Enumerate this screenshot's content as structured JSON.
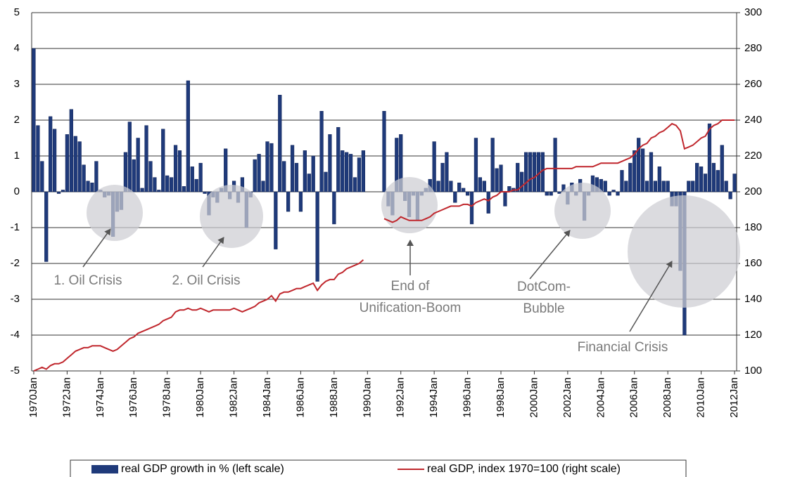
{
  "chart_data": {
    "type": "bar",
    "categories": [
      "1970Jan",
      null,
      null,
      null,
      null,
      null,
      null,
      null,
      "1972Jan",
      null,
      null,
      null,
      null,
      null,
      null,
      null,
      "1974Jan",
      null,
      null,
      null,
      null,
      null,
      null,
      null,
      "1976Jan",
      null,
      null,
      null,
      null,
      null,
      null,
      null,
      "1978Jan",
      null,
      null,
      null,
      null,
      null,
      null,
      null,
      "1980Jan",
      null,
      null,
      null,
      null,
      null,
      null,
      null,
      "1982Jan",
      null,
      null,
      null,
      null,
      null,
      null,
      null,
      "1984Jan",
      null,
      null,
      null,
      null,
      null,
      null,
      null,
      "1986Jan",
      null,
      null,
      null,
      null,
      null,
      null,
      null,
      "1988Jan",
      null,
      null,
      null,
      null,
      null,
      null,
      null,
      "1990Jan",
      null,
      null,
      null,
      null,
      null,
      null,
      null,
      "1992Jan",
      null,
      null,
      null,
      null,
      null,
      null,
      null,
      "1994Jan",
      null,
      null,
      null,
      null,
      null,
      null,
      null,
      "1996Jan",
      null,
      null,
      null,
      null,
      null,
      null,
      null,
      "1998Jan",
      null,
      null,
      null,
      null,
      null,
      null,
      null,
      "2000Jan",
      null,
      null,
      null,
      null,
      null,
      null,
      null,
      "2002Jan",
      null,
      null,
      null,
      null,
      null,
      null,
      null,
      "2004Jan",
      null,
      null,
      null,
      null,
      null,
      null,
      null,
      "2006Jan",
      null,
      null,
      null,
      null,
      null,
      null,
      null,
      "2008Jan",
      null,
      null,
      null,
      null,
      null,
      null,
      null,
      "2010Jan",
      null,
      null,
      null,
      null,
      null,
      null,
      null,
      "2012Jan"
    ],
    "series": [
      {
        "name": "real GDP growth in % (left scale)",
        "type": "bar",
        "color": "#1f3a7a",
        "values": [
          4.0,
          1.85,
          0.85,
          -1.95,
          2.1,
          1.75,
          -0.05,
          0.05,
          1.6,
          2.3,
          1.55,
          1.4,
          0.75,
          0.3,
          0.25,
          0.85,
          0.05,
          -0.15,
          -0.1,
          -1.25,
          -0.55,
          -0.5,
          1.1,
          1.95,
          0.9,
          1.5,
          0.1,
          1.85,
          0.85,
          0.4,
          0.05,
          1.75,
          0.45,
          0.4,
          1.3,
          1.15,
          0.15,
          3.1,
          0.7,
          0.35,
          0.8,
          -0.05,
          -0.65,
          -0.15,
          -0.3,
          0.1,
          1.2,
          -0.2,
          0.3,
          -0.3,
          0.4,
          -1.0,
          -0.15,
          0.9,
          1.05,
          0.3,
          1.4,
          1.35,
          -1.6,
          2.7,
          0.85,
          -0.55,
          1.3,
          0.8,
          -0.55,
          1.15,
          0.5,
          1.0,
          -2.5,
          2.25,
          0.55,
          1.6,
          -0.9,
          1.8,
          1.15,
          1.1,
          1.05,
          0.4,
          0.95,
          1.15,
          null,
          null,
          null,
          null,
          2.25,
          -0.4,
          -0.65,
          1.5,
          1.6,
          -0.25,
          -0.7,
          -0.1,
          -0.8,
          -0.1,
          0.1,
          0.35,
          1.4,
          0.3,
          0.8,
          1.1,
          0.3,
          -0.3,
          0.25,
          0.1,
          -0.1,
          -0.9,
          1.5,
          0.4,
          0.3,
          -0.6,
          1.5,
          0.65,
          0.75,
          -0.4,
          0.15,
          0.1,
          0.8,
          0.55,
          1.1,
          1.1,
          1.1,
          1.1,
          1.1,
          -0.1,
          -0.1,
          1.5,
          -0.05,
          0.2,
          -0.35,
          0.25,
          -0.1,
          0.35,
          -0.8,
          -0.1,
          0.45,
          0.4,
          0.35,
          0.3,
          -0.1,
          0.05,
          -0.1,
          0.6,
          0.3,
          0.8,
          1.15,
          1.5,
          1.2,
          0.3,
          1.1,
          0.3,
          0.7,
          0.3,
          0.3,
          -0.4,
          -0.4,
          -2.2,
          -4.0,
          0.3,
          0.3,
          0.8,
          0.7,
          0.5,
          1.9,
          0.8,
          0.6,
          1.3,
          0.3,
          -0.2,
          0.5
        ]
      },
      {
        "name": "real GDP, index 1970=100 (right scale)",
        "type": "line",
        "axis": "y2",
        "color": "#c0272d",
        "values": [
          100,
          101,
          102,
          101,
          103,
          104,
          104,
          105,
          107,
          109,
          111,
          112,
          113,
          113,
          114,
          114,
          114,
          113,
          112,
          111,
          112,
          114,
          116,
          118,
          119,
          121,
          122,
          123,
          124,
          125,
          126,
          128,
          129,
          130,
          133,
          134,
          134,
          135,
          134,
          134,
          135,
          134,
          133,
          134,
          134,
          134,
          134,
          134,
          135,
          134,
          133,
          134,
          135,
          136,
          138,
          139,
          140,
          142,
          139,
          143,
          144,
          144,
          145,
          146,
          146,
          147,
          148,
          149,
          145,
          148,
          150,
          151,
          151,
          154,
          155,
          157,
          158,
          159,
          160,
          162,
          null,
          null,
          null,
          null,
          185,
          184,
          183,
          184,
          186,
          185,
          184,
          184,
          184,
          184,
          185,
          186,
          188,
          189,
          190,
          191,
          192,
          192,
          192,
          193,
          193,
          192,
          194,
          195,
          196,
          195,
          197,
          198,
          200,
          200,
          200,
          201,
          201,
          203,
          205,
          207,
          208,
          210,
          212,
          213,
          213,
          213,
          213,
          213,
          213,
          213,
          214,
          214,
          214,
          214,
          214,
          215,
          216,
          216,
          216,
          216,
          216,
          217,
          218,
          219,
          221,
          224,
          226,
          227,
          230,
          231,
          233,
          234,
          236,
          238,
          237,
          234,
          224,
          225,
          226,
          228,
          230,
          231,
          235,
          237,
          238,
          240,
          240,
          240,
          240
        ]
      }
    ],
    "ylim": [
      -5,
      5
    ],
    "yticks": [
      -5,
      -4,
      -3,
      -2,
      -1,
      0,
      1,
      2,
      3,
      4,
      5
    ],
    "y2lim": [
      100,
      300
    ],
    "y2ticks": [
      100,
      120,
      140,
      160,
      180,
      200,
      220,
      240,
      260,
      280,
      300
    ],
    "grid": true,
    "legend": "bottom",
    "annotations": [
      "1. Oil Crisis",
      "2. Oil Crisis",
      "End of",
      "Unification-Boom",
      "DotCom-",
      "Bubble",
      "Financial Crisis"
    ]
  }
}
